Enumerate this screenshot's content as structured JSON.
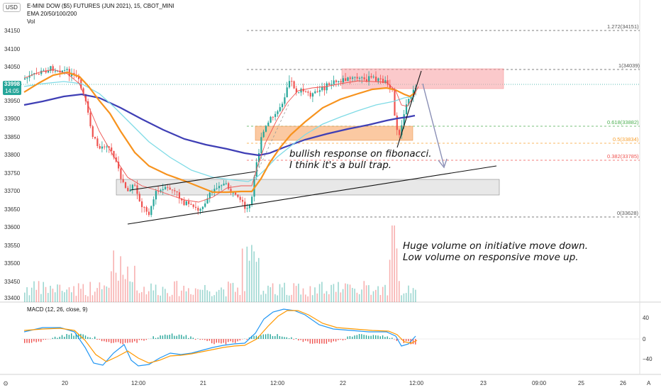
{
  "header": {
    "currency": "USD",
    "title": "E-MINI DOW ($5) FUTURES (JUN 2021), 15, CBOT_MINI",
    "ema": "EMA 20/50/100/200",
    "vol": "Vol"
  },
  "price_badge": {
    "price": "33998",
    "time": "14:05",
    "color": "#26a69a"
  },
  "y_axis": [
    "34150",
    "34100",
    "34050",
    "34000",
    "33950",
    "33900",
    "33850",
    "33800",
    "33750",
    "33700",
    "33650",
    "33600",
    "33550",
    "33500",
    "33450",
    "33400"
  ],
  "fib_levels": [
    {
      "label": "1.272(34151)",
      "color": "#555555"
    },
    {
      "label": "1(34039)",
      "color": "#555555"
    },
    {
      "label": "0.618(33882)",
      "color": "#4caf50"
    },
    {
      "label": "0.5(33834)",
      "color": "#f7a030"
    },
    {
      "label": "0.382(33785)",
      "color": "#ef5350"
    },
    {
      "label": "0(33628)",
      "color": "#555555"
    }
  ],
  "annotations": {
    "fib_note": [
      "bullish response on fibonacci.",
      "I think it's a bull trap."
    ],
    "volume_note": [
      "Huge volume on initiative move down.",
      "Low volume on responsive move up."
    ]
  },
  "macd": {
    "label": "MACD (12, 26, close, 9)",
    "axis": [
      "40",
      "0",
      "−40"
    ]
  },
  "x_axis": [
    "20",
    "12:00",
    "21",
    "12:00",
    "22",
    "12:00",
    "23",
    "09:00",
    "25",
    "26"
  ],
  "bottom": {
    "settings_icon": "gear-icon",
    "auto_label": "A"
  },
  "colors": {
    "up": "#26a69a",
    "down": "#ef5350",
    "ema20": "#ef5350",
    "ema50": "#f7931e",
    "ema100": "#7fdbe6",
    "ema200": "#3f3fb5",
    "macd": "#2196f3",
    "signal": "#ff9800"
  }
}
